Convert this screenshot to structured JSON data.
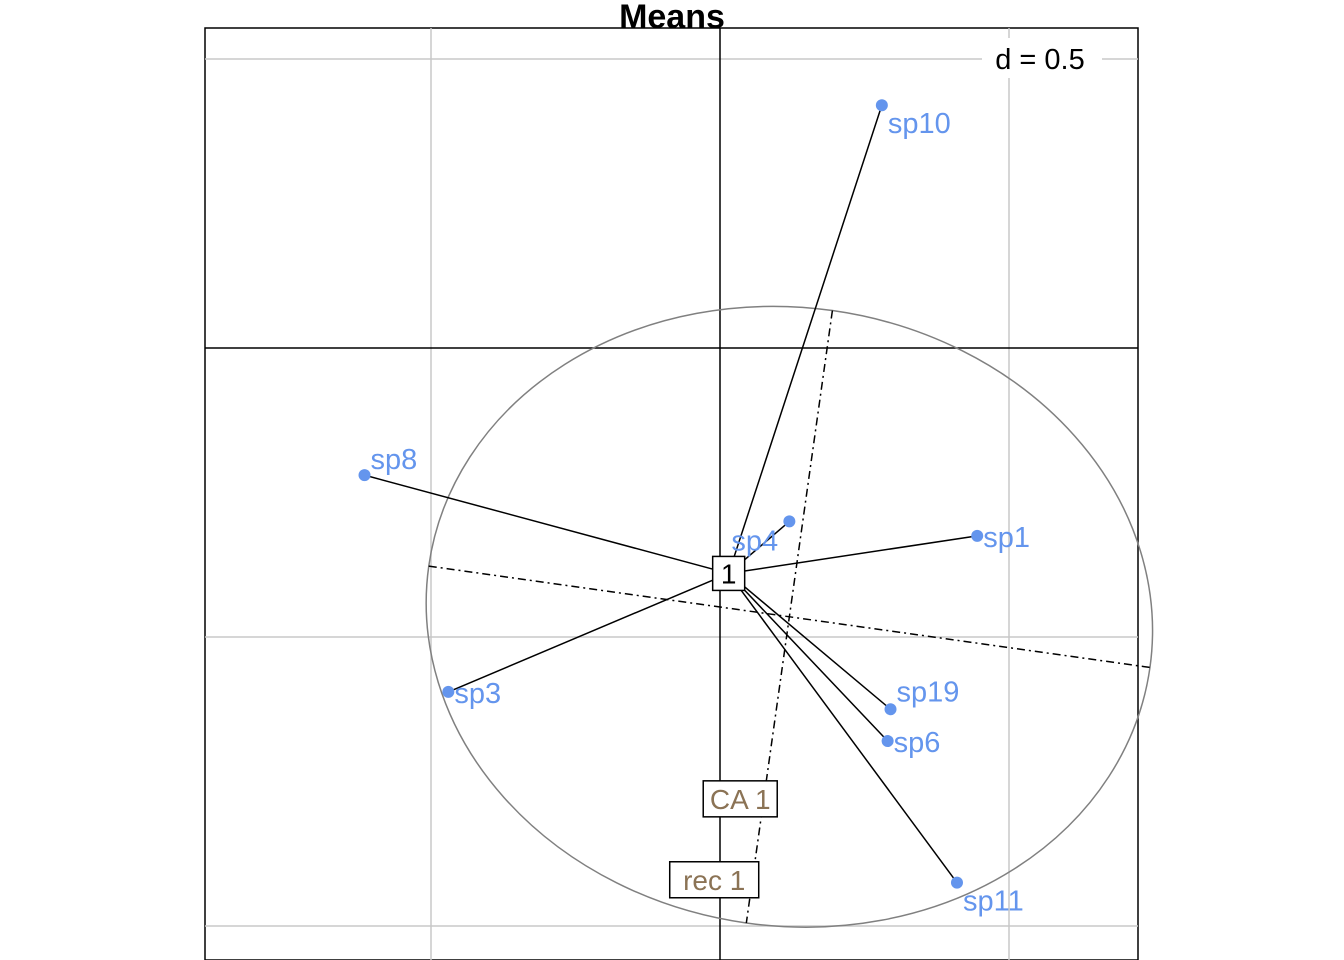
{
  "chart_data": {
    "type": "scatter",
    "title": "Means",
    "scale_label": "d = 0.5",
    "grid": true,
    "center": {
      "label": "1",
      "x": 0.03,
      "y": -0.78
    },
    "points": [
      {
        "label": "sp10",
        "x": 0.56,
        "y": 0.84
      },
      {
        "label": "sp8",
        "x": -1.23,
        "y": -0.44
      },
      {
        "label": "sp4",
        "x": 0.24,
        "y": -0.6
      },
      {
        "label": "sp1",
        "x": 0.89,
        "y": -0.65
      },
      {
        "label": "sp3",
        "x": -0.94,
        "y": -1.19
      },
      {
        "label": "sp19",
        "x": 0.59,
        "y": -1.25
      },
      {
        "label": "sp6",
        "x": 0.58,
        "y": -1.36
      },
      {
        "label": "sp11",
        "x": 0.82,
        "y": -1.85
      }
    ],
    "ellipse": {
      "cx": 0.24,
      "cy": -0.93,
      "rx": 1.26,
      "ry": 1.07,
      "angle_deg": 8,
      "color": "#808080"
    },
    "axes_labels": [
      {
        "label": "CA 1",
        "x": 0.07,
        "y": -1.56
      },
      {
        "label": "rec 1",
        "x": -0.02,
        "y": -1.84
      }
    ],
    "colors": {
      "points": "#6495ED",
      "labels_box": "#8B7355",
      "grid": "#C8C8C8"
    }
  }
}
